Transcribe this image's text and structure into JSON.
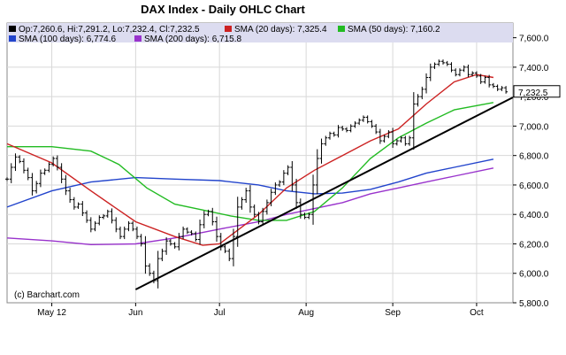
{
  "chart_data": {
    "type": "ohlc",
    "title": "DAX Index - Daily OHLC Chart",
    "credit": "(c) Barchart.com",
    "legend": {
      "ohlc": "Op:7,260.6, Hi:7,291.2, Lo:7,232.4, Cl:7,232.5",
      "sma20": "SMA (20 days): 7,325.4",
      "sma50": "SMA (50 days): 7,160.2",
      "sma100": "SMA (100 days): 6,774.6",
      "sma200": "SMA (200 days): 6,715.8"
    },
    "colors": {
      "ohlc": "#000000",
      "sma20": "#cc2222",
      "sma50": "#22bb22",
      "sma100": "#2244cc",
      "sma200": "#9933cc",
      "trendline": "#000000",
      "last_price_box": "#ffffff"
    },
    "x_labels": [
      {
        "label": "May 12",
        "day": 16
      },
      {
        "label": "Jun",
        "day": 46
      },
      {
        "label": "Jul",
        "day": 76
      },
      {
        "label": "Aug",
        "day": 107
      },
      {
        "label": "Sep",
        "day": 138
      },
      {
        "label": "Oct",
        "day": 168
      }
    ],
    "x_range": [
      0,
      181
    ],
    "ylim": [
      5800,
      7700
    ],
    "y_ticks": [
      5800,
      6000,
      6200,
      6400,
      6600,
      6800,
      7000,
      7200,
      7400,
      7600
    ],
    "y_tick_labels": [
      "5,800.0",
      "6,000.0",
      "6,200.0",
      "6,400.0",
      "6,600.0",
      "6,800.0",
      "7,000.0",
      "7,200.0",
      "7,400.0",
      "7,600.0"
    ],
    "last_price_label": "7,232.5",
    "last_price": 7232.5,
    "closes": [
      6640,
      6720,
      6790,
      6760,
      6700,
      6650,
      6560,
      6610,
      6680,
      6700,
      6740,
      6780,
      6720,
      6640,
      6560,
      6500,
      6450,
      6470,
      6410,
      6360,
      6300,
      6340,
      6380,
      6390,
      6420,
      6360,
      6300,
      6250,
      6300,
      6340,
      6300,
      6250,
      6200,
      6050,
      6000,
      5950,
      6100,
      6150,
      6220,
      6200,
      6180,
      6250,
      6300,
      6280,
      6270,
      6230,
      6330,
      6400,
      6420,
      6350,
      6250,
      6180,
      6150,
      6100,
      6250,
      6450,
      6500,
      6560,
      6450,
      6400,
      6350,
      6420,
      6480,
      6550,
      6600,
      6620,
      6680,
      6720,
      6600,
      6480,
      6400,
      6380,
      6400,
      6600,
      6780,
      6880,
      6920,
      6950,
      6940,
      6990,
      6980,
      6970,
      7000,
      7020,
      7040,
      7060,
      7030,
      7000,
      6960,
      6900,
      6930,
      6960,
      6880,
      6900,
      6920,
      6880,
      6920,
      7150,
      7200,
      7250,
      7330,
      7400,
      7420,
      7440,
      7430,
      7420,
      7380,
      7350,
      7380,
      7400,
      7350,
      7360,
      7340,
      7300,
      7330,
      7280,
      7270,
      7250,
      7260,
      7232.5
    ],
    "x_start_day": 0,
    "x_step_days": 1.5,
    "sma20": [
      [
        0,
        6880
      ],
      [
        16,
        6750
      ],
      [
        30,
        6560
      ],
      [
        46,
        6350
      ],
      [
        60,
        6250
      ],
      [
        70,
        6190
      ],
      [
        76,
        6200
      ],
      [
        90,
        6400
      ],
      [
        100,
        6580
      ],
      [
        110,
        6700
      ],
      [
        120,
        6800
      ],
      [
        130,
        6900
      ],
      [
        140,
        6980
      ],
      [
        150,
        7150
      ],
      [
        160,
        7300
      ],
      [
        168,
        7350
      ],
      [
        174,
        7330
      ]
    ],
    "sma50": [
      [
        0,
        6860
      ],
      [
        16,
        6860
      ],
      [
        30,
        6830
      ],
      [
        40,
        6740
      ],
      [
        50,
        6580
      ],
      [
        60,
        6470
      ],
      [
        70,
        6430
      ],
      [
        80,
        6390
      ],
      [
        90,
        6360
      ],
      [
        100,
        6360
      ],
      [
        110,
        6420
      ],
      [
        120,
        6580
      ],
      [
        130,
        6780
      ],
      [
        140,
        6920
      ],
      [
        150,
        7020
      ],
      [
        160,
        7110
      ],
      [
        174,
        7160
      ]
    ],
    "sma100": [
      [
        0,
        6450
      ],
      [
        16,
        6560
      ],
      [
        30,
        6620
      ],
      [
        46,
        6650
      ],
      [
        60,
        6640
      ],
      [
        76,
        6630
      ],
      [
        90,
        6600
      ],
      [
        100,
        6560
      ],
      [
        110,
        6540
      ],
      [
        120,
        6545
      ],
      [
        130,
        6570
      ],
      [
        140,
        6620
      ],
      [
        150,
        6680
      ],
      [
        160,
        6720
      ],
      [
        174,
        6775
      ]
    ],
    "sma200": [
      [
        0,
        6240
      ],
      [
        16,
        6220
      ],
      [
        30,
        6195
      ],
      [
        46,
        6200
      ],
      [
        60,
        6240
      ],
      [
        76,
        6300
      ],
      [
        90,
        6350
      ],
      [
        100,
        6400
      ],
      [
        110,
        6440
      ],
      [
        120,
        6480
      ],
      [
        130,
        6540
      ],
      [
        140,
        6580
      ],
      [
        150,
        6620
      ],
      [
        160,
        6660
      ],
      [
        174,
        6715
      ]
    ],
    "trendline": [
      [
        46,
        5890
      ],
      [
        181,
        7195
      ]
    ],
    "grid": true
  }
}
